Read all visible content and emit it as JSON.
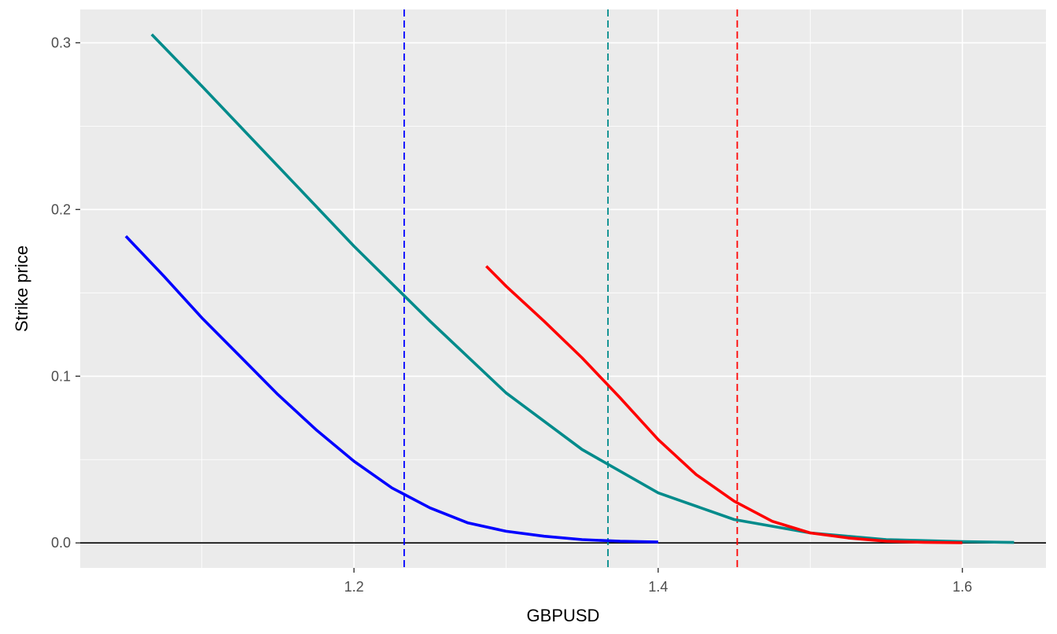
{
  "chart_data": {
    "type": "line",
    "title": "",
    "xlabel": "GBPUSD",
    "ylabel": "Strike price",
    "xlim": [
      1.02,
      1.655
    ],
    "ylim": [
      -0.015,
      0.32
    ],
    "x_ticks": [
      1.2,
      1.4,
      1.6
    ],
    "x_tick_labels": [
      "1.2",
      "1.4",
      "1.6"
    ],
    "y_ticks": [
      0.0,
      0.1,
      0.2,
      0.3
    ],
    "y_tick_labels": [
      "0.0",
      "0.1",
      "0.2",
      "0.3"
    ],
    "grid": true,
    "legend": "none",
    "background_color": "#ebebeb",
    "grid_color": "#ffffff",
    "hline": {
      "y": 0.0,
      "color": "#000000"
    },
    "vlines": [
      {
        "x": 1.233,
        "color": "#0000ff",
        "style": "dashed"
      },
      {
        "x": 1.367,
        "color": "#008b8b",
        "style": "dashed"
      },
      {
        "x": 1.452,
        "color": "#ff0000",
        "style": "dashed"
      }
    ],
    "series": [
      {
        "color": "#0000ff",
        "x": [
          1.05,
          1.075,
          1.1,
          1.125,
          1.15,
          1.175,
          1.2,
          1.225,
          1.25,
          1.275,
          1.3,
          1.325,
          1.35,
          1.375,
          1.4
        ],
        "y": [
          0.184,
          0.16,
          0.135,
          0.112,
          0.089,
          0.068,
          0.049,
          0.033,
          0.021,
          0.012,
          0.007,
          0.004,
          0.002,
          0.001,
          0.0005
        ]
      },
      {
        "color": "#008b8b",
        "x": [
          1.067,
          1.1,
          1.15,
          1.2,
          1.25,
          1.3,
          1.35,
          1.4,
          1.45,
          1.5,
          1.55,
          1.6,
          1.634
        ],
        "y": [
          0.305,
          0.274,
          0.226,
          0.178,
          0.133,
          0.09,
          0.056,
          0.03,
          0.014,
          0.006,
          0.002,
          0.0008,
          0.0003
        ]
      },
      {
        "color": "#ff0000",
        "x": [
          1.287,
          1.3,
          1.325,
          1.35,
          1.375,
          1.4,
          1.425,
          1.45,
          1.475,
          1.5,
          1.525,
          1.55,
          1.575,
          1.6
        ],
        "y": [
          0.166,
          0.154,
          0.133,
          0.111,
          0.087,
          0.062,
          0.041,
          0.025,
          0.013,
          0.006,
          0.003,
          0.001,
          0.0004,
          0.0001
        ]
      }
    ]
  }
}
